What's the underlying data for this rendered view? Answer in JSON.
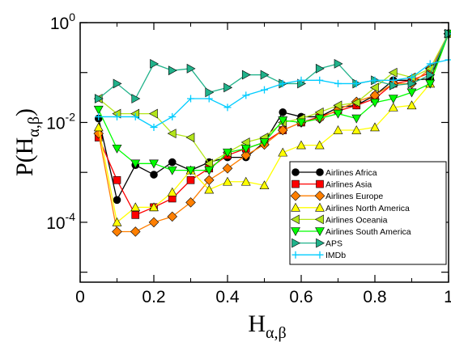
{
  "chart_data": {
    "type": "line",
    "xlabel": {
      "base": "H",
      "sub": "α,β"
    },
    "ylabel": {
      "prefix": "P(H",
      "sub": "α,β",
      "suffix": ")"
    },
    "xlim": [
      0,
      1
    ],
    "ylim_log10": [
      -5.2,
      0
    ],
    "y_scale": "log",
    "grid": false,
    "legend_placement": "lower-right",
    "x_ticks": [
      {
        "value": 0,
        "label": "0"
      },
      {
        "value": 0.2,
        "label": "0.2"
      },
      {
        "value": 0.4,
        "label": "0.4"
      },
      {
        "value": 0.6,
        "label": "0.6"
      },
      {
        "value": 0.8,
        "label": "0.8"
      },
      {
        "value": 1,
        "label": "1"
      }
    ],
    "y_ticks": [
      {
        "exp": -4,
        "base": "10",
        "sup": "-4"
      },
      {
        "exp": -2,
        "base": "10",
        "sup": "-2"
      },
      {
        "exp": 0,
        "base": "10",
        "sup": "0"
      }
    ],
    "series": [
      {
        "name": "Airlines Africa",
        "color": "#000000",
        "marker": "circle",
        "x": [
          0.05,
          0.1,
          0.15,
          0.2,
          0.25,
          0.3,
          0.35,
          0.4,
          0.45,
          0.5,
          0.55,
          0.6,
          0.65,
          0.7,
          0.75,
          0.8,
          0.85,
          0.9,
          0.95,
          1.0
        ],
        "y": [
          0.012,
          0.00028,
          0.0014,
          0.0009,
          0.0016,
          0.0011,
          0.0016,
          0.002,
          0.002,
          0.004,
          0.016,
          0.013,
          0.013,
          0.02,
          0.022,
          0.035,
          0.07,
          0.07,
          0.075,
          0.6
        ]
      },
      {
        "name": "Airlines Asia",
        "color": "#ff0000",
        "marker": "square",
        "x": [
          0.05,
          0.1,
          0.15,
          0.2,
          0.25,
          0.3,
          0.35,
          0.4,
          0.45,
          0.5,
          0.55,
          0.6,
          0.65,
          0.7,
          0.75,
          0.8,
          0.85,
          0.9,
          0.95,
          1.0
        ],
        "y": [
          0.005,
          0.0007,
          0.00014,
          0.0002,
          0.0003,
          0.0007,
          0.0012,
          0.0022,
          0.003,
          0.004,
          0.007,
          0.01,
          0.013,
          0.017,
          0.022,
          0.03,
          0.06,
          0.07,
          0.1,
          0.6
        ]
      },
      {
        "name": "Airlines Europe",
        "color": "#ff7f00",
        "marker": "diamond",
        "x": [
          0.05,
          0.1,
          0.15,
          0.2,
          0.25,
          0.3,
          0.35,
          0.4,
          0.45,
          0.5,
          0.55,
          0.6,
          0.65,
          0.7,
          0.75,
          0.8,
          0.85,
          0.9,
          0.95,
          1.0
        ],
        "y": [
          0.006,
          6.5e-05,
          6.5e-05,
          0.0001,
          0.00013,
          0.00025,
          0.0007,
          0.0012,
          0.0022,
          0.0036,
          0.007,
          0.01,
          0.012,
          0.018,
          0.026,
          0.035,
          0.06,
          0.06,
          0.12,
          0.6
        ]
      },
      {
        "name": "Airlines North America",
        "color": "#ffff00",
        "marker": "triangle-up",
        "x": [
          0.05,
          0.1,
          0.15,
          0.2,
          0.25,
          0.3,
          0.35,
          0.4,
          0.45,
          0.5,
          0.55,
          0.6,
          0.65,
          0.7,
          0.75,
          0.8,
          0.85,
          0.9,
          0.95,
          1.0
        ],
        "y": [
          0.008,
          0.0001,
          0.0002,
          0.0002,
          0.0004,
          0.0011,
          0.00045,
          0.00065,
          0.00065,
          0.00055,
          0.0025,
          0.0035,
          0.0035,
          0.007,
          0.007,
          0.008,
          0.02,
          0.022,
          0.06,
          0.6
        ]
      },
      {
        "name": "Airlines Oceania",
        "color": "#b2e51a",
        "marker": "triangle-left",
        "x": [
          0.05,
          0.1,
          0.15,
          0.2,
          0.25,
          0.3,
          0.35,
          0.4,
          0.45,
          0.5,
          0.55,
          0.6,
          0.65,
          0.7,
          0.75,
          0.8,
          0.85,
          0.9,
          0.95,
          1.0
        ],
        "y": [
          0.03,
          0.015,
          0.015,
          0.015,
          0.006,
          0.005,
          0.0015,
          0.0025,
          0.004,
          0.005,
          0.01,
          0.012,
          0.016,
          0.022,
          0.025,
          0.05,
          0.1,
          0.08,
          0.12,
          0.6
        ]
      },
      {
        "name": "Airlines South America",
        "color": "#00ff00",
        "marker": "triangle-down",
        "x": [
          0.05,
          0.1,
          0.15,
          0.2,
          0.25,
          0.3,
          0.35,
          0.4,
          0.45,
          0.5,
          0.55,
          0.6,
          0.65,
          0.7,
          0.75,
          0.8,
          0.85,
          0.9,
          0.95,
          1.0
        ],
        "y": [
          0.018,
          0.003,
          0.0015,
          0.0015,
          0.0011,
          0.0011,
          0.0011,
          0.0025,
          0.003,
          0.004,
          0.011,
          0.01,
          0.012,
          0.015,
          0.012,
          0.025,
          0.03,
          0.04,
          0.06,
          0.6
        ]
      },
      {
        "name": "APS",
        "color": "#20b28a",
        "marker": "triangle-right",
        "x": [
          0.05,
          0.1,
          0.15,
          0.2,
          0.25,
          0.3,
          0.35,
          0.4,
          0.45,
          0.5,
          0.55,
          0.6,
          0.65,
          0.7,
          0.75,
          0.8,
          0.85,
          0.9,
          0.95,
          1.0
        ],
        "y": [
          0.03,
          0.06,
          0.03,
          0.15,
          0.11,
          0.12,
          0.04,
          0.05,
          0.09,
          0.09,
          0.06,
          0.06,
          0.12,
          0.15,
          0.06,
          0.07,
          0.055,
          0.06,
          0.09,
          0.6
        ]
      },
      {
        "name": "IMDb",
        "color": "#00ccff",
        "marker": "plus",
        "x": [
          0.05,
          0.1,
          0.15,
          0.2,
          0.25,
          0.3,
          0.35,
          0.4,
          0.45,
          0.5,
          0.55,
          0.6,
          0.65,
          0.7,
          0.75,
          0.8,
          0.85,
          0.9,
          0.95,
          1.0
        ],
        "y": [
          0.013,
          0.013,
          0.013,
          0.008,
          0.013,
          0.03,
          0.03,
          0.02,
          0.035,
          0.045,
          0.06,
          0.07,
          0.07,
          0.06,
          0.06,
          0.07,
          0.07,
          0.08,
          0.15,
          0.18
        ]
      }
    ]
  }
}
